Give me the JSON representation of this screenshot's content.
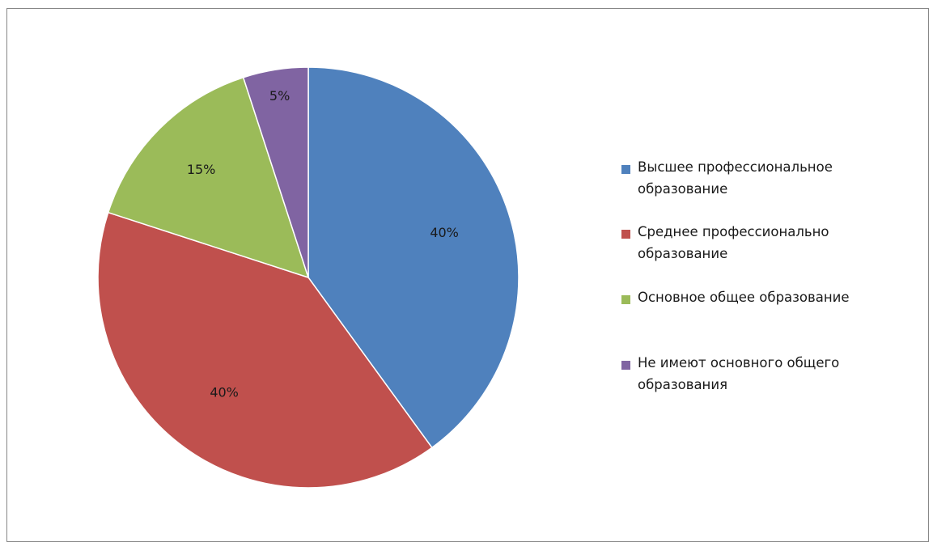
{
  "chart_data": {
    "type": "pie",
    "slices": [
      {
        "label": "Высшее  профессиональное образование",
        "value": 40,
        "data_label": "40%",
        "color": "#4f81bd"
      },
      {
        "label": "Среднее  профессионально образование",
        "value": 40,
        "data_label": "40%",
        "color": "#c0504d"
      },
      {
        "label": "Основное общее образование",
        "value": 15,
        "data_label": "15%",
        "color": "#9bbb59"
      },
      {
        "label": "Не имеют основного общего образования",
        "value": 5,
        "data_label": "5%",
        "color": "#8064a2"
      }
    ],
    "start_angle": "12 o'clock",
    "direction": "clockwise",
    "legend_position": "right"
  }
}
